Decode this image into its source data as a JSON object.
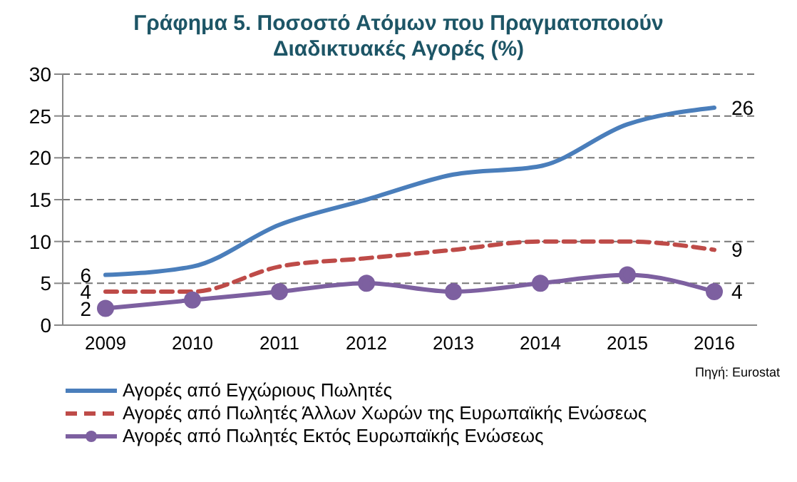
{
  "chart_data": {
    "type": "line",
    "title": "Γράφημα 5. Ποσοστό Ατόμων που Πραγματοποιούν Διαδικτυακές Αγορές  (%)",
    "categories": [
      "2009",
      "2010",
      "2011",
      "2012",
      "2013",
      "2014",
      "2015",
      "2016"
    ],
    "series": [
      {
        "name": "Αγορές από Εγχώριους Πωλητές",
        "color": "#4a7ebb",
        "values": [
          6,
          7,
          12,
          15,
          18,
          19,
          24,
          26
        ],
        "marker": "none",
        "line_style": "solid",
        "value_labels": [
          "6",
          null,
          null,
          null,
          null,
          null,
          null,
          "26"
        ]
      },
      {
        "name": "Αγορές από Πωλητές Άλλων Χωρών της Ευρωπαϊκής Ενώσεως",
        "color": "#be4b48",
        "values": [
          4,
          4,
          7,
          8,
          9,
          10,
          10,
          9
        ],
        "marker": "none",
        "line_style": "dashed",
        "value_labels": [
          "4",
          null,
          null,
          null,
          null,
          null,
          null,
          "9"
        ]
      },
      {
        "name": "Αγορές από  Πωλητές Εκτός Ευρωπαϊκής Ενώσεως",
        "color": "#7d60a0",
        "values": [
          2,
          3,
          4,
          5,
          4,
          5,
          6,
          4
        ],
        "marker": "circle",
        "line_style": "solid",
        "value_labels": [
          "2",
          null,
          null,
          null,
          null,
          null,
          null,
          "4"
        ]
      }
    ],
    "ylim": [
      0,
      30
    ],
    "yticks": [
      0,
      5,
      10,
      15,
      20,
      25,
      30
    ],
    "grid": "y",
    "legend": "bottom",
    "annotations": [
      "Πηγή: Eurostat"
    ]
  }
}
